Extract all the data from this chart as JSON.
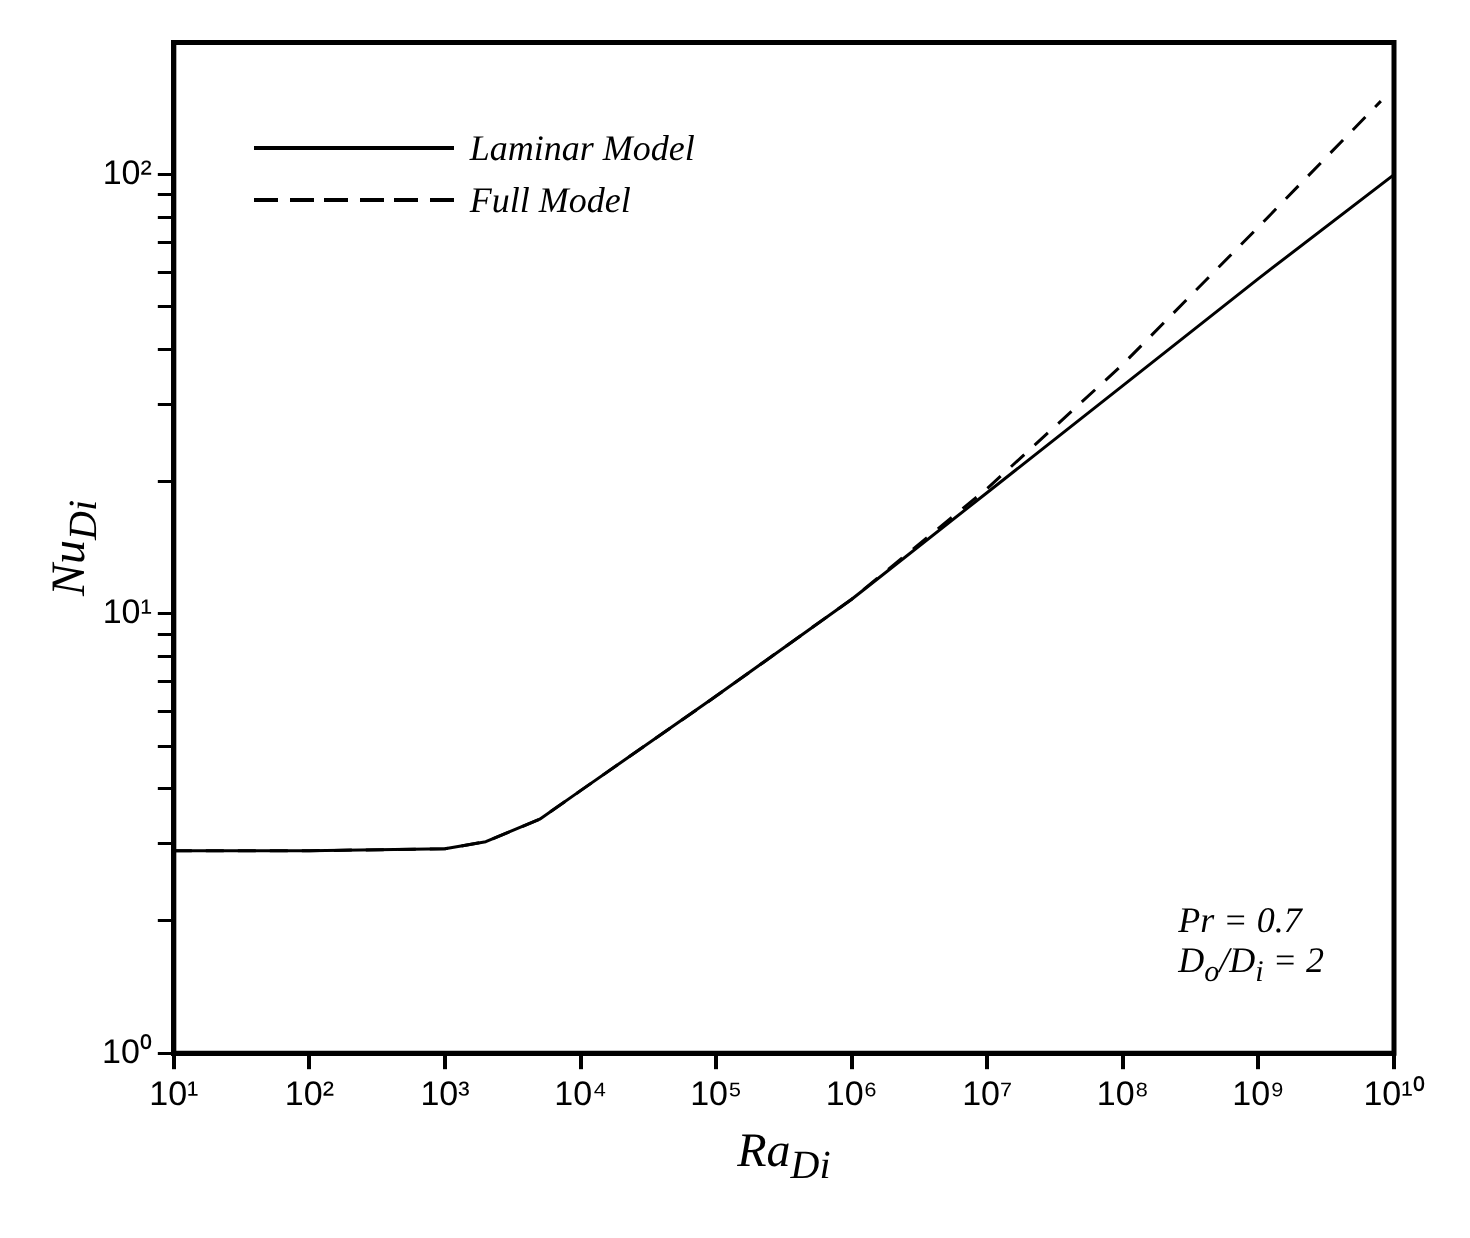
{
  "chart_data": {
    "type": "line",
    "xlabel": "Ra$_{Di}$",
    "ylabel": "Nu$_{Di}$",
    "log": "xy",
    "legend": "top left",
    "marker": "none",
    "xlim": [
      10,
      10000000000
    ],
    "ylim": [
      1,
      200
    ],
    "xticks": [
      {
        "value": 10,
        "label": "10¹"
      },
      {
        "value": 100,
        "label": "10²"
      },
      {
        "value": 1000,
        "label": "10³"
      },
      {
        "value": 10000,
        "label": "10⁴"
      },
      {
        "value": 100000,
        "label": "10⁵"
      },
      {
        "value": 1000000,
        "label": "10⁶"
      },
      {
        "value": 10000000,
        "label": "10⁷"
      },
      {
        "value": 100000000,
        "label": "10⁸"
      },
      {
        "value": 1000000000,
        "label": "10⁹"
      },
      {
        "value": 10000000000,
        "label": "10¹⁰"
      }
    ],
    "yticks": [
      {
        "value": 1,
        "label": "10⁰"
      },
      {
        "value": 2,
        "label": null
      },
      {
        "value": 3,
        "label": null
      },
      {
        "value": 4,
        "label": null
      },
      {
        "value": 5,
        "label": null
      },
      {
        "value": 6,
        "label": null
      },
      {
        "value": 7,
        "label": null
      },
      {
        "value": 8,
        "label": null
      },
      {
        "value": 9,
        "label": null
      },
      {
        "value": 10,
        "label": "10¹"
      },
      {
        "value": 20,
        "label": null
      },
      {
        "value": 30,
        "label": null
      },
      {
        "value": 40,
        "label": null
      },
      {
        "value": 50,
        "label": null
      },
      {
        "value": 60,
        "label": null
      },
      {
        "value": 70,
        "label": null
      },
      {
        "value": 80,
        "label": null
      },
      {
        "value": 90,
        "label": null
      },
      {
        "value": 100,
        "label": "10²"
      }
    ],
    "series": [
      {
        "name": "Laminar Model",
        "color": "#000000",
        "line_style": "solid",
        "x": [
          10,
          100,
          1000,
          2000,
          5000,
          10000,
          100000,
          1000000,
          10000000,
          100000000,
          1000000000,
          10000000000
        ],
        "values": [
          2.89,
          2.89,
          2.92,
          3.03,
          3.41,
          3.96,
          6.5,
          10.8,
          18.9,
          33.1,
          58,
          100
        ]
      },
      {
        "name": "Full Model",
        "color": "#000000",
        "line_style": "dashed",
        "x": [
          10,
          100,
          1000,
          2000,
          5000,
          10000,
          100000,
          1000000,
          10000000,
          100000000,
          1000000000,
          8000000000
        ],
        "values": [
          2.89,
          2.89,
          2.92,
          3.03,
          3.41,
          3.96,
          6.5,
          10.8,
          19.3,
          37,
          76,
          147
        ]
      }
    ],
    "annotations": [
      "Pr = 0.7",
      "D$_{o}$/D$_{i}$ = 2"
    ]
  }
}
